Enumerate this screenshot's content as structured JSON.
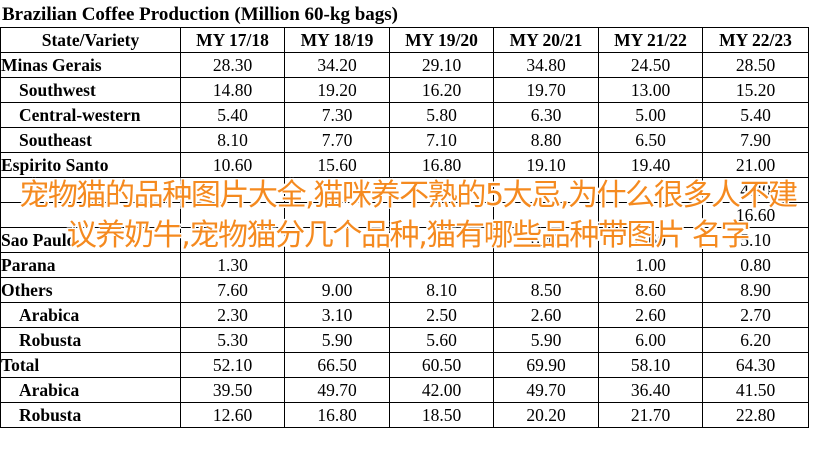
{
  "title": "Brazilian Coffee Production (Million 60-kg bags)",
  "table": {
    "headers": [
      "State/Variety",
      "MY 17/18",
      "MY 18/19",
      "MY 19/20",
      "MY 20/21",
      "MY 21/22",
      "MY 22/23"
    ],
    "rows": [
      {
        "name": "Minas Gerais",
        "indent": false,
        "values": [
          "28.30",
          "34.20",
          "29.10",
          "34.80",
          "24.50",
          "28.50"
        ]
      },
      {
        "name": "Southwest",
        "indent": true,
        "values": [
          "14.80",
          "19.20",
          "16.20",
          "19.70",
          "13.00",
          "15.20"
        ]
      },
      {
        "name": "Central-western",
        "indent": true,
        "values": [
          "5.40",
          "7.30",
          "5.80",
          "6.30",
          "5.00",
          "5.40"
        ]
      },
      {
        "name": "Southeast",
        "indent": true,
        "values": [
          "8.10",
          "7.70",
          "7.10",
          "8.80",
          "6.50",
          "7.90"
        ]
      },
      {
        "name": "Espirito Santo",
        "indent": false,
        "values": [
          "10.60",
          "15.60",
          "16.80",
          "19.10",
          "19.40",
          "21.00"
        ]
      },
      {
        "name": "",
        "indent": true,
        "values": [
          "",
          "",
          "",
          "",
          "",
          "4.40"
        ]
      },
      {
        "name": "",
        "indent": true,
        "values": [
          "",
          "",
          "",
          "",
          "",
          "16.60"
        ]
      },
      {
        "name": "Sao Paulo",
        "indent": false,
        "values": [
          "",
          "",
          "",
          "6.40",
          "4.60",
          "5.10"
        ]
      },
      {
        "name": "Parana",
        "indent": false,
        "values": [
          "1.30",
          "",
          "",
          "",
          "1.00",
          "0.80"
        ]
      },
      {
        "name": "Others",
        "indent": false,
        "values": [
          "7.60",
          "9.00",
          "8.10",
          "8.50",
          "8.60",
          "8.90"
        ]
      },
      {
        "name": "Arabica",
        "indent": true,
        "values": [
          "2.30",
          "3.10",
          "2.50",
          "2.60",
          "2.60",
          "2.70"
        ]
      },
      {
        "name": "Robusta",
        "indent": true,
        "values": [
          "5.30",
          "5.90",
          "5.60",
          "5.90",
          "6.00",
          "6.20"
        ]
      },
      {
        "name": "Total",
        "indent": false,
        "values": [
          "52.10",
          "66.50",
          "60.50",
          "69.90",
          "58.10",
          "64.30"
        ]
      },
      {
        "name": "Arabica",
        "indent": true,
        "values": [
          "39.50",
          "49.70",
          "42.00",
          "49.70",
          "36.40",
          "41.50"
        ]
      },
      {
        "name": "Robusta",
        "indent": true,
        "values": [
          "12.60",
          "16.80",
          "18.50",
          "20.20",
          "21.70",
          "22.80"
        ]
      }
    ]
  },
  "overlay_text": "宠物猫的品种图片大全,猫咪养不熟的5大忌,为什么很多人不建议养奶牛,宠物猫分几个品种,猫有哪些品种带图片 名字",
  "colors": {
    "overlay": "#f58a1f",
    "grid": "#000000",
    "background": "#ffffff"
  }
}
